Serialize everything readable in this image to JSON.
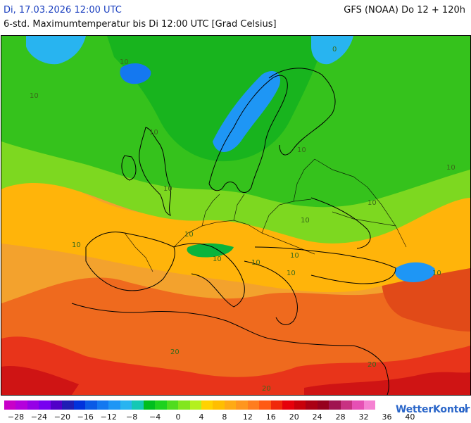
{
  "header": {
    "date": "Di, 17.03.2026 12:00 UTC",
    "model": "GFS (NOAA) Do 12 + 120h",
    "description": "6-std. Maximumtemperatur bis Di 12:00 UTC [Grad Celsius]"
  },
  "legend": {
    "colors": [
      "#c800c8",
      "#b400dc",
      "#9600e6",
      "#7800f0",
      "#5000c8",
      "#1e1eb4",
      "#0032dc",
      "#0a5ae6",
      "#1478f0",
      "#1e96f5",
      "#28b4f0",
      "#14c8b4",
      "#00be1e",
      "#1ed21e",
      "#50dc1e",
      "#82e61e",
      "#b4f01e",
      "#ffd200",
      "#ffbe00",
      "#ffaa14",
      "#ff961e",
      "#ff7d1e",
      "#ff5a14",
      "#f0280a",
      "#e6000a",
      "#c8000a",
      "#aa0014",
      "#96001e",
      "#a01450",
      "#c83282",
      "#e650b4",
      "#f582d2"
    ],
    "labels": [
      "−28",
      "−24",
      "−20",
      "−16",
      "−12",
      "−8",
      "−4",
      "0",
      "4",
      "8",
      "12",
      "16",
      "20",
      "24",
      "28",
      "32",
      "36",
      "40"
    ]
  },
  "map": {
    "contour_labels": [
      "10",
      "10",
      "10",
      "10",
      "10",
      "10",
      "10",
      "10",
      "10",
      "10",
      "10",
      "10",
      "10",
      "10",
      "20",
      "20",
      "20",
      "10",
      "0"
    ]
  },
  "brand": {
    "name": "WetterKontor"
  }
}
